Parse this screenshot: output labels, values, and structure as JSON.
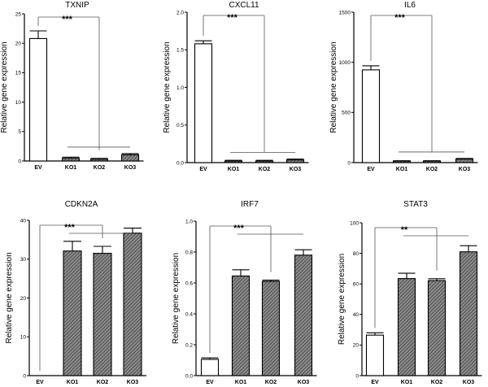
{
  "chart_data": [
    {
      "type": "bar",
      "title": "TXNIP",
      "ylabel": "Relative gene expression",
      "categories": [
        "EV",
        "KO1",
        "KO2",
        "KO3"
      ],
      "values": [
        20.8,
        0.45,
        0.3,
        1.05
      ],
      "errors": [
        1.3,
        0.2,
        0.15,
        0.2
      ],
      "ylim": [
        0,
        25
      ],
      "yticks": [
        0,
        5,
        10,
        15,
        20,
        25
      ],
      "significance": "***"
    },
    {
      "type": "bar",
      "title": "CXCL11",
      "ylabel": "Relative gene expression",
      "categories": [
        "EV",
        "KO1",
        "KO2",
        "KO3"
      ],
      "values": [
        1.58,
        0.02,
        0.02,
        0.035
      ],
      "errors": [
        0.04,
        0.01,
        0.01,
        0.012
      ],
      "ylim": [
        0,
        2.0
      ],
      "yticks": [
        0.0,
        0.5,
        1.0,
        1.5,
        2.0
      ],
      "significance": "***"
    },
    {
      "type": "bar",
      "title": "IL6",
      "ylabel": "Relative gene expression",
      "categories": [
        "EV",
        "KO1",
        "KO2",
        "KO3"
      ],
      "values": [
        925,
        15,
        15,
        35
      ],
      "errors": [
        40,
        4,
        4,
        6
      ],
      "ylim": [
        0,
        1500
      ],
      "yticks": [
        0,
        500,
        1000,
        1500
      ],
      "significance": "***"
    },
    {
      "type": "bar",
      "title": "CDKN2A",
      "ylabel": "Relative gene expression",
      "categories": [
        "EV",
        "KO1",
        "KO2",
        "KO3"
      ],
      "values": [
        0,
        32.1,
        31.5,
        36.7
      ],
      "errors": [
        0,
        2.5,
        1.8,
        1.3
      ],
      "ylim": [
        0,
        40
      ],
      "yticks": [
        0,
        10,
        20,
        30,
        40
      ],
      "significance": "***"
    },
    {
      "type": "bar",
      "title": "IRF7",
      "ylabel": "Relative gene expression",
      "categories": [
        "EV",
        "KO1",
        "KO2",
        "KO3"
      ],
      "values": [
        0.105,
        0.645,
        0.61,
        0.78
      ],
      "errors": [
        0.01,
        0.04,
        0.008,
        0.035
      ],
      "ylim": [
        0,
        1.0
      ],
      "yticks": [
        0.0,
        0.2,
        0.4,
        0.6,
        0.8,
        1.0
      ],
      "significance": "***"
    },
    {
      "type": "bar",
      "title": "STAT3",
      "ylabel": "Relative gene expression",
      "categories": [
        "EV",
        "KO1",
        "KO2",
        "KO3"
      ],
      "values": [
        26.5,
        63.5,
        62.2,
        81.0
      ],
      "errors": [
        1.5,
        3.5,
        1.2,
        4.0
      ],
      "ylim": [
        0,
        100
      ],
      "yticks": [
        0,
        20,
        40,
        60,
        80,
        100
      ],
      "significance": "**"
    }
  ],
  "colors": {
    "ev_fill": "#ffffff",
    "ko_fill": "#8a8a8a",
    "ko_hatch": "#3a3a3a",
    "axis": "#000000",
    "bracket": "#555555"
  }
}
